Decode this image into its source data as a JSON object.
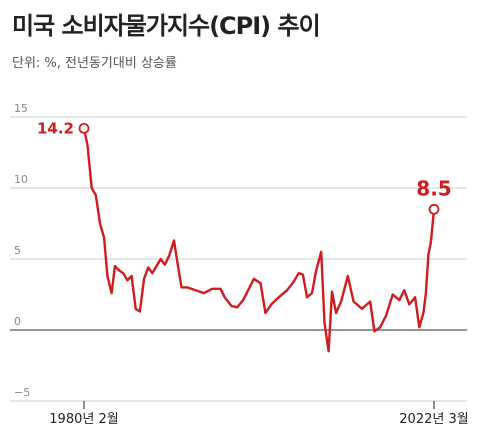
{
  "header": {
    "title": "미국 소비자물가지수(CPI) 추이",
    "subtitle": "단위: %, 전년동기대비 상승률"
  },
  "colors": {
    "line": "#d01c1f",
    "grid": "#cccccc",
    "zero": "#555555",
    "tick": "#888888",
    "label": "#222222",
    "marker_fill": "#ffffff"
  },
  "chart_data": {
    "type": "line",
    "title": "미국 소비자물가지수(CPI) 추이",
    "subtitle": "단위: %, 전년동기대비 상승률",
    "xlabel": "",
    "ylabel": "",
    "ylim": [
      -5,
      15
    ],
    "xlim": [
      1980.08,
      2022.17
    ],
    "y_ticks": [
      "15",
      "10",
      "5",
      "0",
      "−5"
    ],
    "y_tick_values": [
      15,
      10,
      5,
      0,
      -5
    ],
    "x_labels": [
      "1980년 2월",
      "2022년 3월"
    ],
    "x_label_values": [
      1980.08,
      2022.17
    ],
    "grid": true,
    "annotations": [
      {
        "text": "14.2",
        "x": 1980.08,
        "y": 14.2
      },
      {
        "text": "8.5",
        "x": 2022.17,
        "y": 8.5
      }
    ],
    "series": [
      {
        "x": [
          1980.08,
          1980.5,
          1981.0,
          1981.5,
          1982.0,
          1982.5,
          1982.9,
          1983.4,
          1983.8,
          1984.3,
          1984.8,
          1985.3,
          1985.8,
          1986.3,
          1986.8,
          1987.3,
          1987.8,
          1988.3,
          1988.8,
          1989.3,
          1989.8,
          1990.3,
          1990.9,
          1991.3,
          1991.8,
          1992.5,
          1993.5,
          1994.5,
          1995.5,
          1996.5,
          1997.0,
          1997.8,
          1998.5,
          1999.2,
          2000.0,
          2000.5,
          2001.3,
          2001.9,
          2002.6,
          2003.5,
          2004.5,
          2005.3,
          2005.9,
          2006.4,
          2006.9,
          2007.5,
          2008.0,
          2008.6,
          2009.0,
          2009.5,
          2009.9,
          2010.4,
          2011.0,
          2011.8,
          2012.5,
          2013.5,
          2014.5,
          2015.0,
          2015.7,
          2016.4,
          2017.2,
          2018.0,
          2018.6,
          2019.2,
          2019.9,
          2020.4,
          2020.9,
          2021.2,
          2021.5,
          2021.8,
          2022.17
        ],
        "y": [
          14.2,
          13.0,
          10.0,
          9.5,
          7.5,
          6.5,
          3.8,
          2.6,
          4.5,
          4.2,
          4.0,
          3.5,
          3.8,
          1.5,
          1.3,
          3.6,
          4.4,
          4.0,
          4.5,
          5.0,
          4.6,
          5.2,
          6.3,
          4.8,
          3.0,
          3.0,
          2.8,
          2.6,
          2.9,
          2.9,
          2.3,
          1.7,
          1.6,
          2.1,
          3.0,
          3.6,
          3.3,
          1.2,
          1.8,
          2.3,
          2.8,
          3.4,
          4.0,
          3.9,
          2.3,
          2.6,
          4.2,
          5.5,
          0.5,
          -1.5,
          2.7,
          1.2,
          2.0,
          3.8,
          2.0,
          1.5,
          2.0,
          -0.1,
          0.2,
          1.0,
          2.5,
          2.1,
          2.8,
          1.8,
          2.3,
          0.2,
          1.2,
          2.6,
          5.3,
          6.2,
          8.5
        ]
      }
    ]
  }
}
